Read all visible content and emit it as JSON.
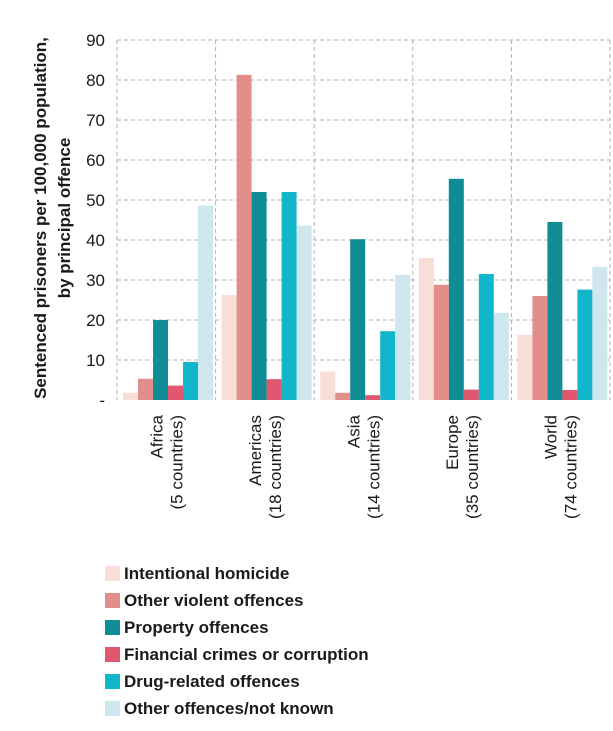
{
  "chart_data": {
    "type": "bar",
    "ylabel_line1": "Sentenced prisoners per 100,000 population,",
    "ylabel_line2": "by principal offence",
    "ylim": [
      0,
      90
    ],
    "yticks": [
      0,
      10,
      20,
      30,
      40,
      50,
      60,
      70,
      80,
      90
    ],
    "ytick_labels": [
      "-",
      "10",
      "20",
      "30",
      "40",
      "50",
      "60",
      "70",
      "80",
      "90"
    ],
    "grid": true,
    "legend_position": "bottom",
    "categories": [
      {
        "line1": "Africa",
        "line2": "(5 countries)"
      },
      {
        "line1": "Americas",
        "line2": "(18 countries)"
      },
      {
        "line1": "Asia",
        "line2": "(14 countries)"
      },
      {
        "line1": "Europe",
        "line2": "(35 countries)"
      },
      {
        "line1": "World",
        "line2": "(74 countries)"
      }
    ],
    "series": [
      {
        "name": "Intentional homicide",
        "color": "#f8ded6",
        "values": [
          1.8,
          26.2,
          7.1,
          35.5,
          16.3
        ]
      },
      {
        "name": "Other violent offences",
        "color": "#e28e8a",
        "values": [
          5.3,
          81.3,
          1.8,
          28.8,
          26.0
        ]
      },
      {
        "name": "Property offences",
        "color": "#0f8c94",
        "values": [
          20.0,
          52.0,
          40.2,
          55.3,
          44.5
        ]
      },
      {
        "name": "Financial crimes or corruption",
        "color": "#e05870",
        "values": [
          3.6,
          5.2,
          1.2,
          2.6,
          2.5
        ]
      },
      {
        "name": "Drug-related offences",
        "color": "#12b6ca",
        "values": [
          9.5,
          52.0,
          17.2,
          31.5,
          27.6
        ]
      },
      {
        "name": "Other offences/not known",
        "color": "#cfe6ee",
        "values": [
          48.6,
          43.6,
          31.3,
          21.8,
          33.3
        ]
      }
    ]
  }
}
